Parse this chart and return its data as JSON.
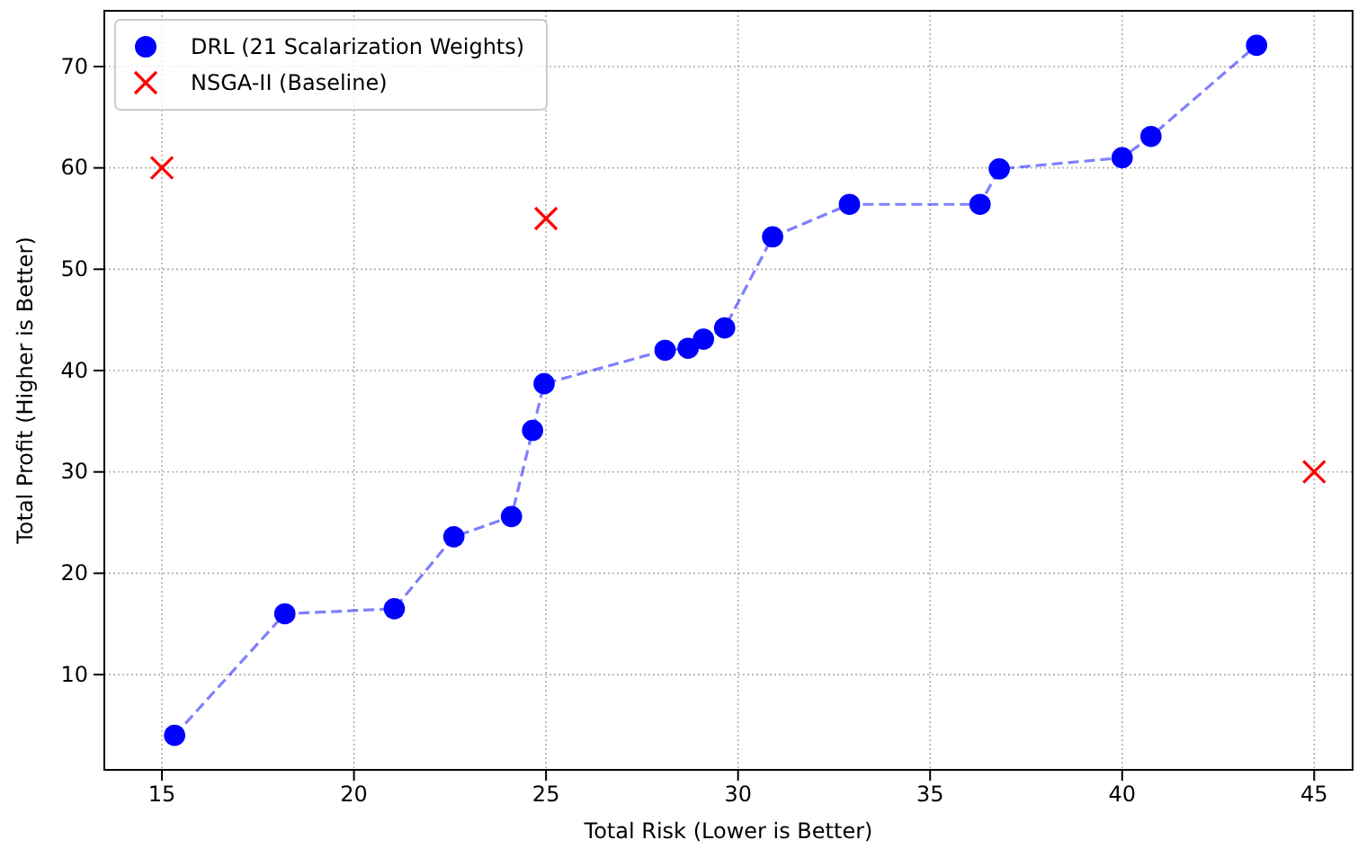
{
  "chart_data": {
    "type": "scatter",
    "xlabel": "Total Risk (Lower is Better)",
    "ylabel": "Total Profit (Higher is Better)",
    "xlim": [
      13.5,
      46
    ],
    "xticks": [
      15,
      20,
      25,
      30,
      35,
      40,
      45
    ],
    "ylim": [
      0.6,
      75.5
    ],
    "yticks": [
      10,
      20,
      30,
      40,
      50,
      60,
      70
    ],
    "grid": true,
    "legend": "top left",
    "series": [
      {
        "name": "DRL (21 Scalarization Weights)",
        "type": "line",
        "color": "#0000ff",
        "marker": "circle",
        "line_style": "dashed",
        "x": [
          15.33,
          18.2,
          21.05,
          22.6,
          24.1,
          24.65,
          24.95,
          28.1,
          28.7,
          29.1,
          29.65,
          30.9,
          32.9,
          36.3,
          36.8,
          40.0,
          40.75,
          43.5
        ],
        "values": [
          4.0,
          16.0,
          16.5,
          23.6,
          25.6,
          34.1,
          38.7,
          42.0,
          42.2,
          43.1,
          44.2,
          53.2,
          56.4,
          56.4,
          59.9,
          61.0,
          63.1,
          72.1
        ]
      },
      {
        "name": "NSGA-II (Baseline)",
        "color": "#ff0000",
        "marker": "cross",
        "x": [
          15,
          25,
          45
        ],
        "values": [
          60,
          55,
          30
        ]
      }
    ]
  }
}
